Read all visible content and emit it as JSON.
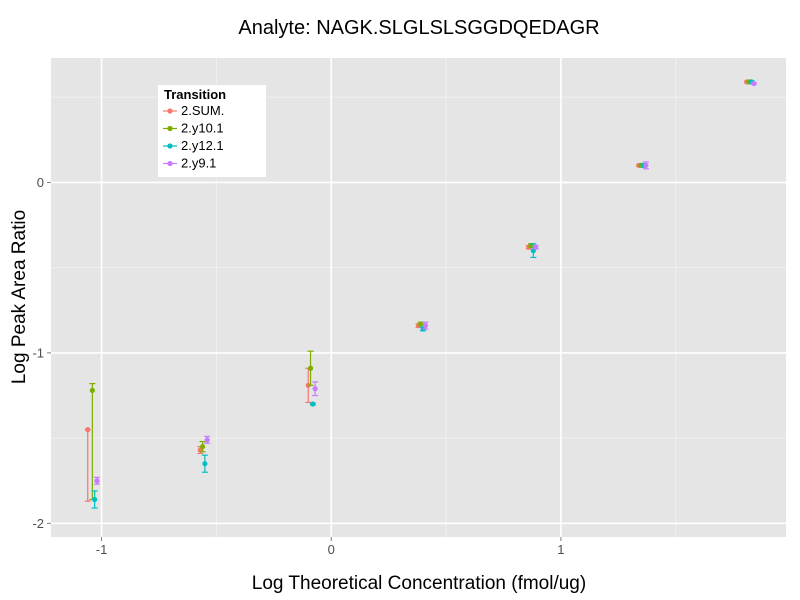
{
  "chart_data": {
    "type": "scatter",
    "title": "Analyte: NAGK.SLGLSLSGGDQEDAGR",
    "xlabel": "Log Theoretical Concentration (fmol/ug)",
    "ylabel": "Log Peak Area Ratio",
    "xlim": [
      -1.22,
      1.98
    ],
    "ylim": [
      -2.08,
      0.73
    ],
    "x_ticks": [
      -1,
      0,
      1
    ],
    "x_tick_labels": [
      "-1",
      "0",
      "1"
    ],
    "y_ticks": [
      -2,
      -1,
      0
    ],
    "y_tick_labels": [
      "-2",
      "-1",
      "0"
    ],
    "grid": true,
    "legend": {
      "title": "Transition",
      "position": "top-left"
    },
    "series": [
      {
        "name": "2.SUM.",
        "color": "#F8766D",
        "points": [
          {
            "x": -1.06,
            "y": -1.45,
            "err_lo": 0.42,
            "err_hi": 0.0
          },
          {
            "x": -0.57,
            "y": -1.57,
            "err_lo": 0.02,
            "err_hi": 0.02
          },
          {
            "x": -0.1,
            "y": -1.19,
            "err_lo": 0.1,
            "err_hi": 0.1
          },
          {
            "x": 0.38,
            "y": -0.84,
            "err_lo": 0.01,
            "err_hi": 0.01
          },
          {
            "x": 0.86,
            "y": -0.38,
            "err_lo": 0.01,
            "err_hi": 0.01
          },
          {
            "x": 1.34,
            "y": 0.1,
            "err_lo": 0.005,
            "err_hi": 0.005
          },
          {
            "x": 1.81,
            "y": 0.59,
            "err_lo": 0.005,
            "err_hi": 0.005
          }
        ]
      },
      {
        "name": "2.y10.1",
        "color": "#7CAE00",
        "points": [
          {
            "x": -1.04,
            "y": -1.22,
            "err_lo": 0.64,
            "err_hi": 0.04
          },
          {
            "x": -0.56,
            "y": -1.55,
            "err_lo": 0.03,
            "err_hi": 0.03
          },
          {
            "x": -0.09,
            "y": -1.09,
            "err_lo": 0.1,
            "err_hi": 0.1
          },
          {
            "x": 0.39,
            "y": -0.83,
            "err_lo": 0.01,
            "err_hi": 0.01
          },
          {
            "x": 0.87,
            "y": -0.37,
            "err_lo": 0.01,
            "err_hi": 0.01
          },
          {
            "x": 1.35,
            "y": 0.1,
            "err_lo": 0.005,
            "err_hi": 0.005
          },
          {
            "x": 1.82,
            "y": 0.59,
            "err_lo": 0.005,
            "err_hi": 0.005
          }
        ]
      },
      {
        "name": "2.y12.1",
        "color": "#00BFC4",
        "points": [
          {
            "x": -1.03,
            "y": -1.86,
            "err_lo": 0.05,
            "err_hi": 0.05
          },
          {
            "x": -0.55,
            "y": -1.65,
            "err_lo": 0.05,
            "err_hi": 0.05
          },
          {
            "x": -0.08,
            "y": -1.3,
            "err_lo": 0.005,
            "err_hi": 0.005
          },
          {
            "x": 0.4,
            "y": -0.86,
            "err_lo": 0.01,
            "err_hi": 0.01
          },
          {
            "x": 0.88,
            "y": -0.4,
            "err_lo": 0.04,
            "err_hi": 0.04
          },
          {
            "x": 1.36,
            "y": 0.1,
            "err_lo": 0.005,
            "err_hi": 0.005
          },
          {
            "x": 1.83,
            "y": 0.59,
            "err_lo": 0.005,
            "err_hi": 0.005
          }
        ]
      },
      {
        "name": "2.y9.1",
        "color": "#C77CFF",
        "points": [
          {
            "x": -1.02,
            "y": -1.75,
            "err_lo": 0.02,
            "err_hi": 0.02
          },
          {
            "x": -0.54,
            "y": -1.51,
            "err_lo": 0.02,
            "err_hi": 0.02
          },
          {
            "x": -0.07,
            "y": -1.21,
            "err_lo": 0.04,
            "err_hi": 0.04
          },
          {
            "x": 0.41,
            "y": -0.84,
            "err_lo": 0.02,
            "err_hi": 0.02
          },
          {
            "x": 0.89,
            "y": -0.38,
            "err_lo": 0.01,
            "err_hi": 0.01
          },
          {
            "x": 1.37,
            "y": 0.1,
            "err_lo": 0.02,
            "err_hi": 0.02
          },
          {
            "x": 1.84,
            "y": 0.58,
            "err_lo": 0.005,
            "err_hi": 0.005
          }
        ]
      }
    ]
  }
}
